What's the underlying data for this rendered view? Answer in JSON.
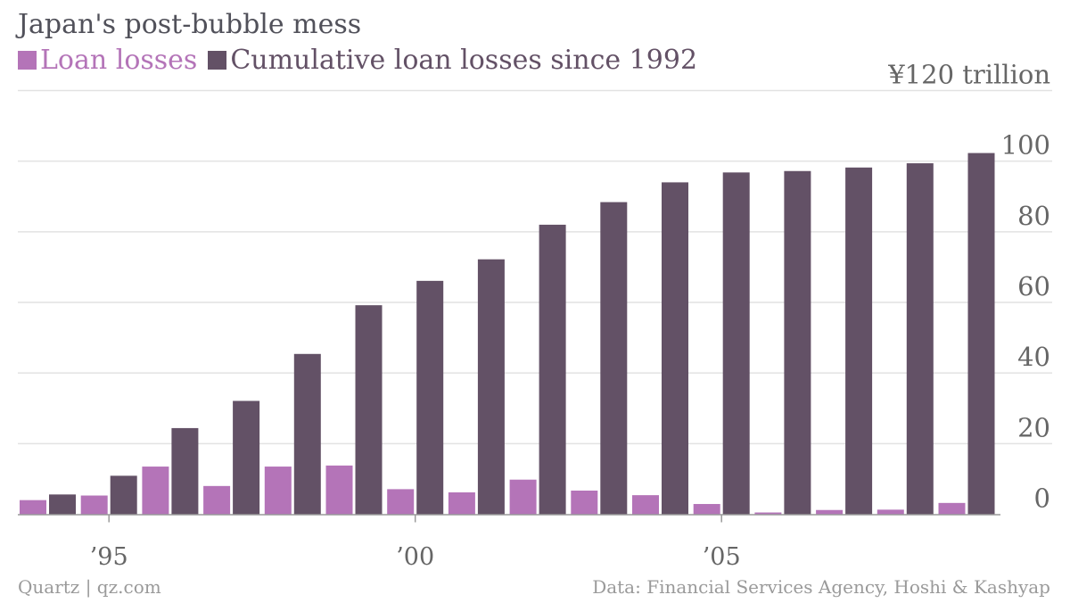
{
  "title": "Japan's post-bubble mess",
  "source_left": "Quartz | qz.com",
  "source_right": "Data: Financial Services Agency, Hoshi & Kashyap",
  "chart_data": {
    "type": "bar",
    "title": "Japan's post-bubble mess",
    "categories": [
      "1994",
      "1995",
      "1996",
      "1997",
      "1998",
      "1999",
      "2000",
      "2001",
      "2002",
      "2003",
      "2004",
      "2005",
      "2006",
      "2007",
      "2008",
      "2009"
    ],
    "series": [
      {
        "name": "Loan losses",
        "color": "#b474b8",
        "values": [
          4,
          5.3,
          13.5,
          8,
          13.5,
          13.8,
          7.1,
          6.2,
          9.8,
          6.7,
          5.4,
          2.9,
          0.5,
          1.2,
          1.3,
          3.2
        ]
      },
      {
        "name": "Cumulative loan losses since 1992",
        "color": "#635166",
        "values": [
          5.6,
          10.9,
          24.4,
          32.1,
          45.4,
          59.2,
          66.1,
          72.2,
          82.0,
          88.4,
          94.0,
          96.8,
          97.2,
          98.2,
          99.4,
          102.3
        ]
      }
    ],
    "y_ticks": [
      {
        "value": 0,
        "label": "0"
      },
      {
        "value": 20,
        "label": "20"
      },
      {
        "value": 40,
        "label": "40"
      },
      {
        "value": 60,
        "label": "60"
      },
      {
        "value": 80,
        "label": "80"
      },
      {
        "value": 100,
        "label": "100"
      },
      {
        "value": 120,
        "label": "¥120 trillion"
      }
    ],
    "x_ticks": [
      {
        "category": "1995",
        "label": "’95"
      },
      {
        "category": "2000",
        "label": "’00"
      },
      {
        "category": "2005",
        "label": "’05"
      }
    ],
    "ylim": [
      0,
      120
    ],
    "grid": true,
    "y_axis_position": "right",
    "legend_position": "top-left"
  }
}
